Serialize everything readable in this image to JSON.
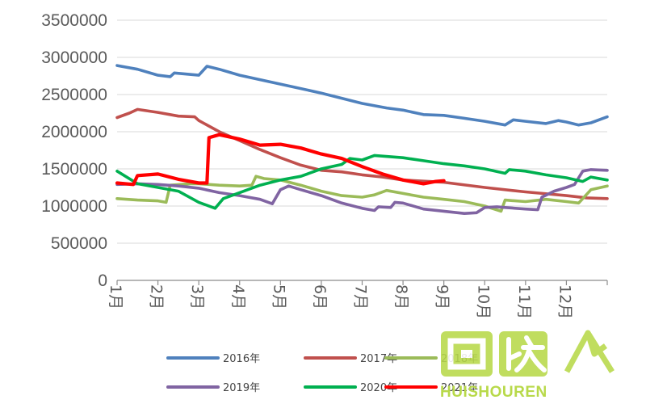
{
  "chart_data": {
    "type": "line",
    "title": "",
    "xlabel": "",
    "ylabel": "",
    "ylim": [
      0,
      3500000
    ],
    "yticks": [
      "3500000",
      "3000000",
      "2500000",
      "2000000",
      "1500000",
      "1000000",
      "500000",
      "0"
    ],
    "xlim": [
      1,
      13
    ],
    "categories": [
      "1月",
      "2月",
      "3月",
      "4月",
      "5月",
      "6月",
      "7月",
      "8月",
      "9月",
      "10月",
      "11月",
      "12月"
    ],
    "grid": true,
    "legend_position": "bottom",
    "series": [
      {
        "name": "2016年",
        "color": "#4f81bd",
        "points": [
          [
            1.0,
            2890000
          ],
          [
            1.5,
            2840000
          ],
          [
            2.0,
            2760000
          ],
          [
            2.3,
            2740000
          ],
          [
            2.4,
            2790000
          ],
          [
            3.0,
            2760000
          ],
          [
            3.2,
            2880000
          ],
          [
            3.5,
            2840000
          ],
          [
            4.0,
            2760000
          ],
          [
            5.0,
            2640000
          ],
          [
            6.0,
            2520000
          ],
          [
            7.0,
            2380000
          ],
          [
            7.6,
            2320000
          ],
          [
            8.0,
            2290000
          ],
          [
            8.5,
            2230000
          ],
          [
            9.0,
            2220000
          ],
          [
            9.5,
            2180000
          ],
          [
            10.0,
            2140000
          ],
          [
            10.5,
            2090000
          ],
          [
            10.7,
            2160000
          ],
          [
            11.0,
            2140000
          ],
          [
            11.5,
            2110000
          ],
          [
            11.8,
            2150000
          ],
          [
            12.0,
            2130000
          ],
          [
            12.3,
            2090000
          ],
          [
            12.6,
            2120000
          ],
          [
            13.0,
            2200000
          ]
        ]
      },
      {
        "name": "2017年",
        "color": "#c0504d",
        "points": [
          [
            1.0,
            2190000
          ],
          [
            1.3,
            2250000
          ],
          [
            1.5,
            2300000
          ],
          [
            2.0,
            2260000
          ],
          [
            2.5,
            2210000
          ],
          [
            2.9,
            2200000
          ],
          [
            3.0,
            2150000
          ],
          [
            3.5,
            2000000
          ],
          [
            4.0,
            1880000
          ],
          [
            4.5,
            1760000
          ],
          [
            5.0,
            1650000
          ],
          [
            5.5,
            1550000
          ],
          [
            6.0,
            1480000
          ],
          [
            6.5,
            1460000
          ],
          [
            7.0,
            1420000
          ],
          [
            7.5,
            1390000
          ],
          [
            8.0,
            1350000
          ],
          [
            9.0,
            1320000
          ],
          [
            10.0,
            1250000
          ],
          [
            11.0,
            1190000
          ],
          [
            12.0,
            1140000
          ],
          [
            12.5,
            1110000
          ],
          [
            13.0,
            1100000
          ]
        ]
      },
      {
        "name": "2018年",
        "color": "#9bbb59",
        "points": [
          [
            1.0,
            1100000
          ],
          [
            1.5,
            1080000
          ],
          [
            2.0,
            1070000
          ],
          [
            2.2,
            1050000
          ],
          [
            2.3,
            1280000
          ],
          [
            2.8,
            1300000
          ],
          [
            3.0,
            1300000
          ],
          [
            3.5,
            1280000
          ],
          [
            4.0,
            1270000
          ],
          [
            4.3,
            1280000
          ],
          [
            4.4,
            1400000
          ],
          [
            4.6,
            1370000
          ],
          [
            5.0,
            1350000
          ],
          [
            5.5,
            1280000
          ],
          [
            6.0,
            1200000
          ],
          [
            6.5,
            1140000
          ],
          [
            7.0,
            1120000
          ],
          [
            7.3,
            1150000
          ],
          [
            7.6,
            1210000
          ],
          [
            8.0,
            1170000
          ],
          [
            8.5,
            1120000
          ],
          [
            9.0,
            1090000
          ],
          [
            9.5,
            1060000
          ],
          [
            10.0,
            1000000
          ],
          [
            10.4,
            930000
          ],
          [
            10.5,
            1080000
          ],
          [
            11.0,
            1060000
          ],
          [
            11.5,
            1090000
          ],
          [
            12.0,
            1060000
          ],
          [
            12.3,
            1040000
          ],
          [
            12.6,
            1220000
          ],
          [
            13.0,
            1270000
          ]
        ]
      },
      {
        "name": "2019年",
        "color": "#8064a2",
        "points": [
          [
            1.0,
            1290000
          ],
          [
            1.5,
            1300000
          ],
          [
            2.0,
            1290000
          ],
          [
            2.5,
            1270000
          ],
          [
            3.0,
            1240000
          ],
          [
            3.5,
            1180000
          ],
          [
            4.0,
            1140000
          ],
          [
            4.5,
            1090000
          ],
          [
            4.8,
            1030000
          ],
          [
            5.0,
            1220000
          ],
          [
            5.2,
            1270000
          ],
          [
            5.5,
            1220000
          ],
          [
            6.0,
            1140000
          ],
          [
            6.5,
            1040000
          ],
          [
            7.0,
            970000
          ],
          [
            7.3,
            940000
          ],
          [
            7.4,
            990000
          ],
          [
            7.7,
            980000
          ],
          [
            7.8,
            1050000
          ],
          [
            8.0,
            1040000
          ],
          [
            8.5,
            960000
          ],
          [
            9.0,
            930000
          ],
          [
            9.5,
            900000
          ],
          [
            9.8,
            910000
          ],
          [
            10.0,
            980000
          ],
          [
            10.3,
            990000
          ],
          [
            10.5,
            980000
          ],
          [
            11.0,
            960000
          ],
          [
            11.3,
            950000
          ],
          [
            11.4,
            1120000
          ],
          [
            11.7,
            1200000
          ],
          [
            12.0,
            1250000
          ],
          [
            12.2,
            1290000
          ],
          [
            12.4,
            1470000
          ],
          [
            12.6,
            1490000
          ],
          [
            13.0,
            1480000
          ]
        ]
      },
      {
        "name": "2020年",
        "color": "#00b050",
        "points": [
          [
            1.0,
            1470000
          ],
          [
            1.5,
            1300000
          ],
          [
            2.0,
            1250000
          ],
          [
            2.5,
            1200000
          ],
          [
            3.0,
            1050000
          ],
          [
            3.4,
            970000
          ],
          [
            3.6,
            1100000
          ],
          [
            4.0,
            1180000
          ],
          [
            4.5,
            1280000
          ],
          [
            5.0,
            1350000
          ],
          [
            5.5,
            1400000
          ],
          [
            6.0,
            1500000
          ],
          [
            6.5,
            1560000
          ],
          [
            6.7,
            1640000
          ],
          [
            7.0,
            1620000
          ],
          [
            7.3,
            1680000
          ],
          [
            8.0,
            1650000
          ],
          [
            8.5,
            1610000
          ],
          [
            9.0,
            1570000
          ],
          [
            9.5,
            1540000
          ],
          [
            10.0,
            1500000
          ],
          [
            10.5,
            1440000
          ],
          [
            10.6,
            1490000
          ],
          [
            11.0,
            1470000
          ],
          [
            11.5,
            1420000
          ],
          [
            12.0,
            1380000
          ],
          [
            12.4,
            1330000
          ],
          [
            12.6,
            1390000
          ],
          [
            13.0,
            1350000
          ]
        ]
      },
      {
        "name": "2021年",
        "color": "#ff0000",
        "points": [
          [
            1.0,
            1310000
          ],
          [
            1.4,
            1290000
          ],
          [
            1.5,
            1410000
          ],
          [
            2.0,
            1430000
          ],
          [
            2.5,
            1360000
          ],
          [
            3.0,
            1310000
          ],
          [
            3.2,
            1310000
          ],
          [
            3.25,
            1920000
          ],
          [
            3.5,
            1960000
          ],
          [
            4.0,
            1900000
          ],
          [
            4.5,
            1820000
          ],
          [
            5.0,
            1830000
          ],
          [
            5.5,
            1780000
          ],
          [
            6.0,
            1700000
          ],
          [
            6.5,
            1640000
          ],
          [
            7.0,
            1530000
          ],
          [
            7.5,
            1430000
          ],
          [
            8.0,
            1350000
          ],
          [
            8.5,
            1300000
          ],
          [
            8.8,
            1330000
          ],
          [
            9.0,
            1340000
          ]
        ]
      }
    ]
  },
  "watermark": {
    "text": "HUISHOUREN",
    "logo_text": "回收",
    "color": "#b8d94a"
  }
}
